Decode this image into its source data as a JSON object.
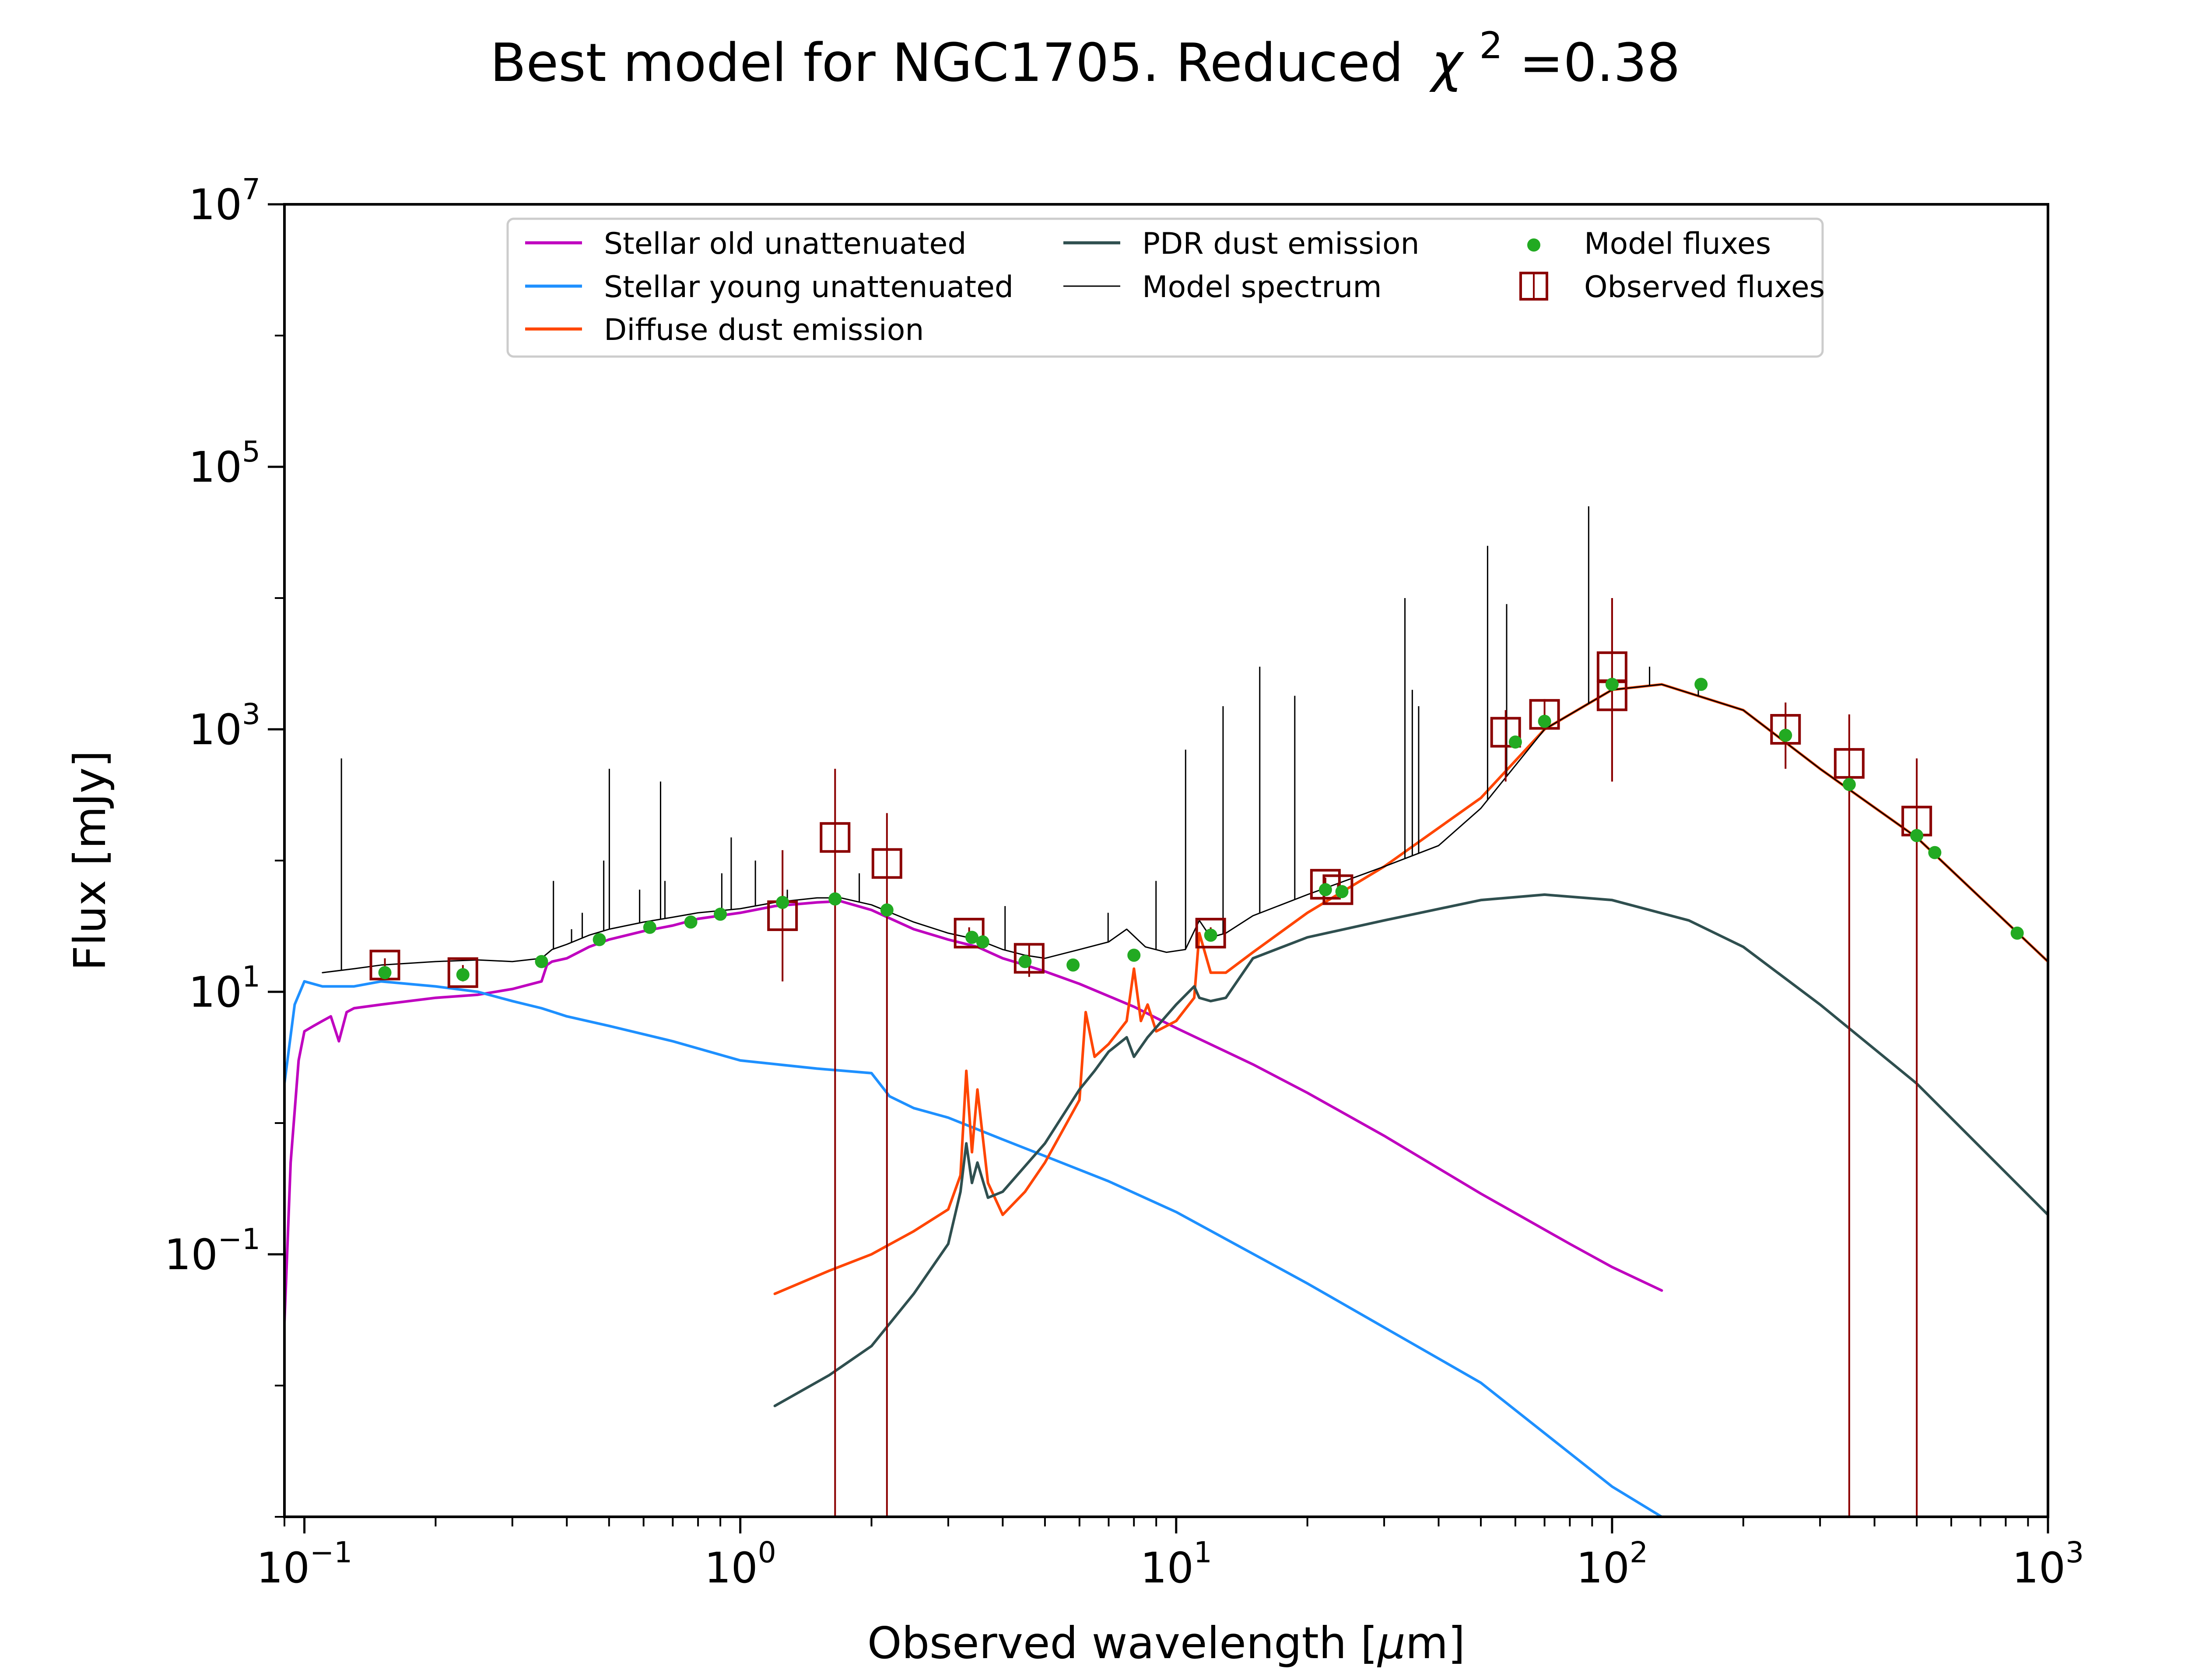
{
  "chart_data": {
    "type": "line",
    "title": "Best model for NGC1705. Reduced",
    "title_chi": "χ",
    "title_exp": "2",
    "title_value": "=0.38",
    "xlabel": "Observed wavelength [",
    "xlabel_mu": "μ",
    "xlabel_unit": "m]",
    "ylabel": "Flux [mJy]",
    "xscale": "log",
    "yscale": "log",
    "xlim": [
      0.09,
      1000
    ],
    "ylim": [
      0.001,
      10000000
    ],
    "grid": false,
    "legend_placement": "upper center",
    "x_ticks": [
      {
        "value": 0.1,
        "base": "10",
        "exp": "−1"
      },
      {
        "value": 1,
        "base": "10",
        "exp": "0"
      },
      {
        "value": 10,
        "base": "10",
        "exp": "1"
      },
      {
        "value": 100,
        "base": "10",
        "exp": "2"
      },
      {
        "value": 1000,
        "base": "10",
        "exp": "3"
      }
    ],
    "y_ticks": [
      {
        "value": 0.1,
        "base": "10",
        "exp": "−1"
      },
      {
        "value": 10,
        "base": "10",
        "exp": "1"
      },
      {
        "value": 1000,
        "base": "10",
        "exp": "3"
      },
      {
        "value": 100000,
        "base": "10",
        "exp": "5"
      },
      {
        "value": 10000000,
        "base": "10",
        "exp": "7"
      }
    ],
    "series": [
      {
        "name": "Stellar old unattenuated",
        "color": "#bf00bf",
        "width": 6,
        "x": [
          0.09,
          0.093,
          0.097,
          0.1,
          0.105,
          0.11,
          0.115,
          0.12,
          0.125,
          0.13,
          0.15,
          0.2,
          0.25,
          0.3,
          0.35,
          0.36,
          0.37,
          0.4,
          0.45,
          0.5,
          0.6,
          0.7,
          0.8,
          1.0,
          1.2,
          1.5,
          1.7,
          2.0,
          2.5,
          3.0,
          3.5,
          4.0,
          4.5,
          5,
          6,
          8,
          10,
          15,
          20,
          30,
          50,
          80,
          100,
          130
        ],
        "y": [
          0.03,
          0.5,
          3,
          5,
          5.5,
          6,
          6.5,
          4.2,
          7,
          7.5,
          8,
          9,
          9.5,
          10.5,
          12,
          16,
          17,
          18,
          22,
          25,
          29,
          32,
          36,
          40,
          45,
          48,
          49,
          42,
          30,
          25,
          22,
          18,
          16,
          14.3,
          11.5,
          7.7,
          5.3,
          2.8,
          1.7,
          0.8,
          0.29,
          0.12,
          0.08,
          0.053
        ]
      },
      {
        "name": "Stellar young unattenuated",
        "color": "#1e90ff",
        "width": 6,
        "x": [
          0.09,
          0.095,
          0.1,
          0.11,
          0.13,
          0.15,
          0.2,
          0.25,
          0.3,
          0.35,
          0.4,
          0.5,
          0.7,
          1.0,
          1.5,
          2.0,
          2.2,
          2.5,
          3.0,
          4.0,
          5.0,
          7.0,
          10,
          20,
          50,
          100,
          130
        ],
        "y": [
          2,
          8,
          12,
          11,
          11,
          12,
          11,
          10,
          8.5,
          7.5,
          6.5,
          5.5,
          4.2,
          3.0,
          2.6,
          2.4,
          1.6,
          1.3,
          1.1,
          0.75,
          0.56,
          0.36,
          0.21,
          0.06,
          0.0105,
          0.0017,
          0.001
        ]
      },
      {
        "name": "Diffuse dust emission",
        "color": "#ff4500",
        "width": 6,
        "x": [
          1.2,
          1.6,
          2.0,
          2.5,
          3.0,
          3.2,
          3.3,
          3.4,
          3.5,
          3.7,
          4.0,
          4.5,
          5.0,
          6.0,
          6.2,
          6.5,
          7.0,
          7.7,
          8.0,
          8.3,
          8.6,
          9.0,
          10,
          11,
          11.3,
          12,
          13,
          15,
          20,
          30,
          50,
          70,
          100,
          130,
          200,
          300,
          500,
          1000
        ],
        "y": [
          0.05,
          0.075,
          0.1,
          0.15,
          0.22,
          0.4,
          2.5,
          0.6,
          1.8,
          0.35,
          0.2,
          0.3,
          0.5,
          1.5,
          7,
          3.2,
          4,
          6,
          15,
          6,
          8,
          5,
          6,
          9,
          28,
          14,
          14,
          20,
          40,
          90,
          300,
          1000,
          2000,
          2200,
          1400,
          500,
          150,
          17
        ]
      },
      {
        "name": "PDR dust emission",
        "color": "#2f4f4f",
        "width": 6,
        "x": [
          1.2,
          1.6,
          2.0,
          2.5,
          3.0,
          3.2,
          3.3,
          3.4,
          3.5,
          3.7,
          4.0,
          5.0,
          6.0,
          6.5,
          7.0,
          7.7,
          8.0,
          8.6,
          10,
          11,
          11.3,
          12,
          13,
          15,
          20,
          30,
          50,
          70,
          100,
          150,
          200,
          300,
          500,
          1000
        ],
        "y": [
          0.007,
          0.012,
          0.02,
          0.05,
          0.12,
          0.3,
          0.7,
          0.35,
          0.5,
          0.27,
          0.3,
          0.7,
          1.8,
          2.5,
          3.5,
          4.5,
          3.2,
          4.5,
          8,
          11,
          9,
          8.5,
          9,
          18,
          26,
          35,
          50,
          55,
          50,
          35,
          22,
          8,
          2,
          0.2
        ]
      },
      {
        "name": "Model spectrum",
        "color": "#000000",
        "width": 3,
        "x": [
          0.11,
          0.13,
          0.15,
          0.2,
          0.25,
          0.3,
          0.35,
          0.37,
          0.4,
          0.45,
          0.5,
          0.6,
          0.7,
          0.8,
          1.0,
          1.2,
          1.5,
          1.7,
          2.0,
          2.5,
          3.0,
          3.5,
          4.0,
          4.5,
          5.0,
          6.0,
          7.0,
          7.7,
          8.5,
          9.5,
          10.5,
          11.3,
          12,
          13,
          15,
          20,
          30,
          40,
          50,
          70,
          100,
          130,
          200,
          300,
          500,
          1000
        ],
        "y": [
          14,
          15,
          16,
          17,
          17.5,
          17,
          18,
          21,
          23,
          27,
          30,
          34,
          37,
          40,
          43,
          48,
          52,
          52,
          46,
          34,
          28,
          25,
          21,
          19,
          18,
          21,
          24,
          30,
          22,
          20,
          21,
          35,
          26,
          28,
          38,
          55,
          90,
          130,
          250,
          1000,
          2000,
          2200,
          1400,
          500,
          150,
          17
        ]
      }
    ],
    "emission_lines": [
      {
        "x": 0.1216,
        "y": 600
      },
      {
        "x": 0.3727,
        "y": 70
      },
      {
        "x": 0.4101,
        "y": 30
      },
      {
        "x": 0.434,
        "y": 40
      },
      {
        "x": 0.4861,
        "y": 100
      },
      {
        "x": 0.5007,
        "y": 500
      },
      {
        "x": 0.5876,
        "y": 60
      },
      {
        "x": 0.6563,
        "y": 400
      },
      {
        "x": 0.6717,
        "y": 70
      },
      {
        "x": 0.9069,
        "y": 80
      },
      {
        "x": 0.9532,
        "y": 150
      },
      {
        "x": 1.083,
        "y": 100
      },
      {
        "x": 1.282,
        "y": 60
      },
      {
        "x": 1.875,
        "y": 80
      },
      {
        "x": 4.05,
        "y": 45
      },
      {
        "x": 6.98,
        "y": 40
      },
      {
        "x": 8.99,
        "y": 70
      },
      {
        "x": 10.51,
        "y": 700
      },
      {
        "x": 12.81,
        "y": 1500
      },
      {
        "x": 15.55,
        "y": 3000
      },
      {
        "x": 18.71,
        "y": 1800
      },
      {
        "x": 33.48,
        "y": 10000
      },
      {
        "x": 34.81,
        "y": 2000
      },
      {
        "x": 36.0,
        "y": 1500
      },
      {
        "x": 51.81,
        "y": 25000
      },
      {
        "x": 57.3,
        "y": 9000
      },
      {
        "x": 88.36,
        "y": 50000
      },
      {
        "x": 121.9,
        "y": 3000
      },
      {
        "x": 157.7,
        "y": 2300
      }
    ],
    "model_fluxes": {
      "name": "Model fluxes",
      "color": "#22aa22",
      "x": [
        0.153,
        0.231,
        0.35,
        0.475,
        0.62,
        0.77,
        0.9,
        1.25,
        1.65,
        2.17,
        3.4,
        3.6,
        4.5,
        5.8,
        8.0,
        12,
        22,
        24,
        60,
        70,
        100,
        160,
        250,
        350,
        500,
        550,
        850
      ],
      "y": [
        14,
        13.5,
        17,
        25,
        31,
        34,
        39,
        48,
        51,
        42,
        26,
        24,
        17,
        16,
        19,
        27,
        60,
        58,
        800,
        1150,
        2200,
        2200,
        900,
        380,
        155,
        115,
        28
      ]
    },
    "observed_fluxes": {
      "name": "Observed fluxes",
      "color": "#8b0000",
      "x": [
        0.153,
        0.231,
        1.25,
        1.65,
        2.17,
        3.35,
        4.6,
        12,
        22,
        23.5,
        57,
        70,
        100,
        100,
        250,
        350,
        500
      ],
      "y": [
        16,
        14,
        38,
        150,
        95,
        28,
        18,
        28,
        66,
        60,
        950,
        1300,
        3000,
        1800,
        1000,
        550,
        200
      ],
      "err_lo": [
        14,
        12,
        12,
        0.001,
        0.001,
        25,
        13,
        25,
        58,
        53,
        400,
        1000,
        400,
        400,
        500,
        0.001,
        0.001
      ],
      "err_hi": [
        18,
        16,
        120,
        500,
        230,
        31,
        23,
        31,
        74,
        67,
        1400,
        1700,
        10000,
        10000,
        1600,
        1300,
        600
      ]
    }
  }
}
